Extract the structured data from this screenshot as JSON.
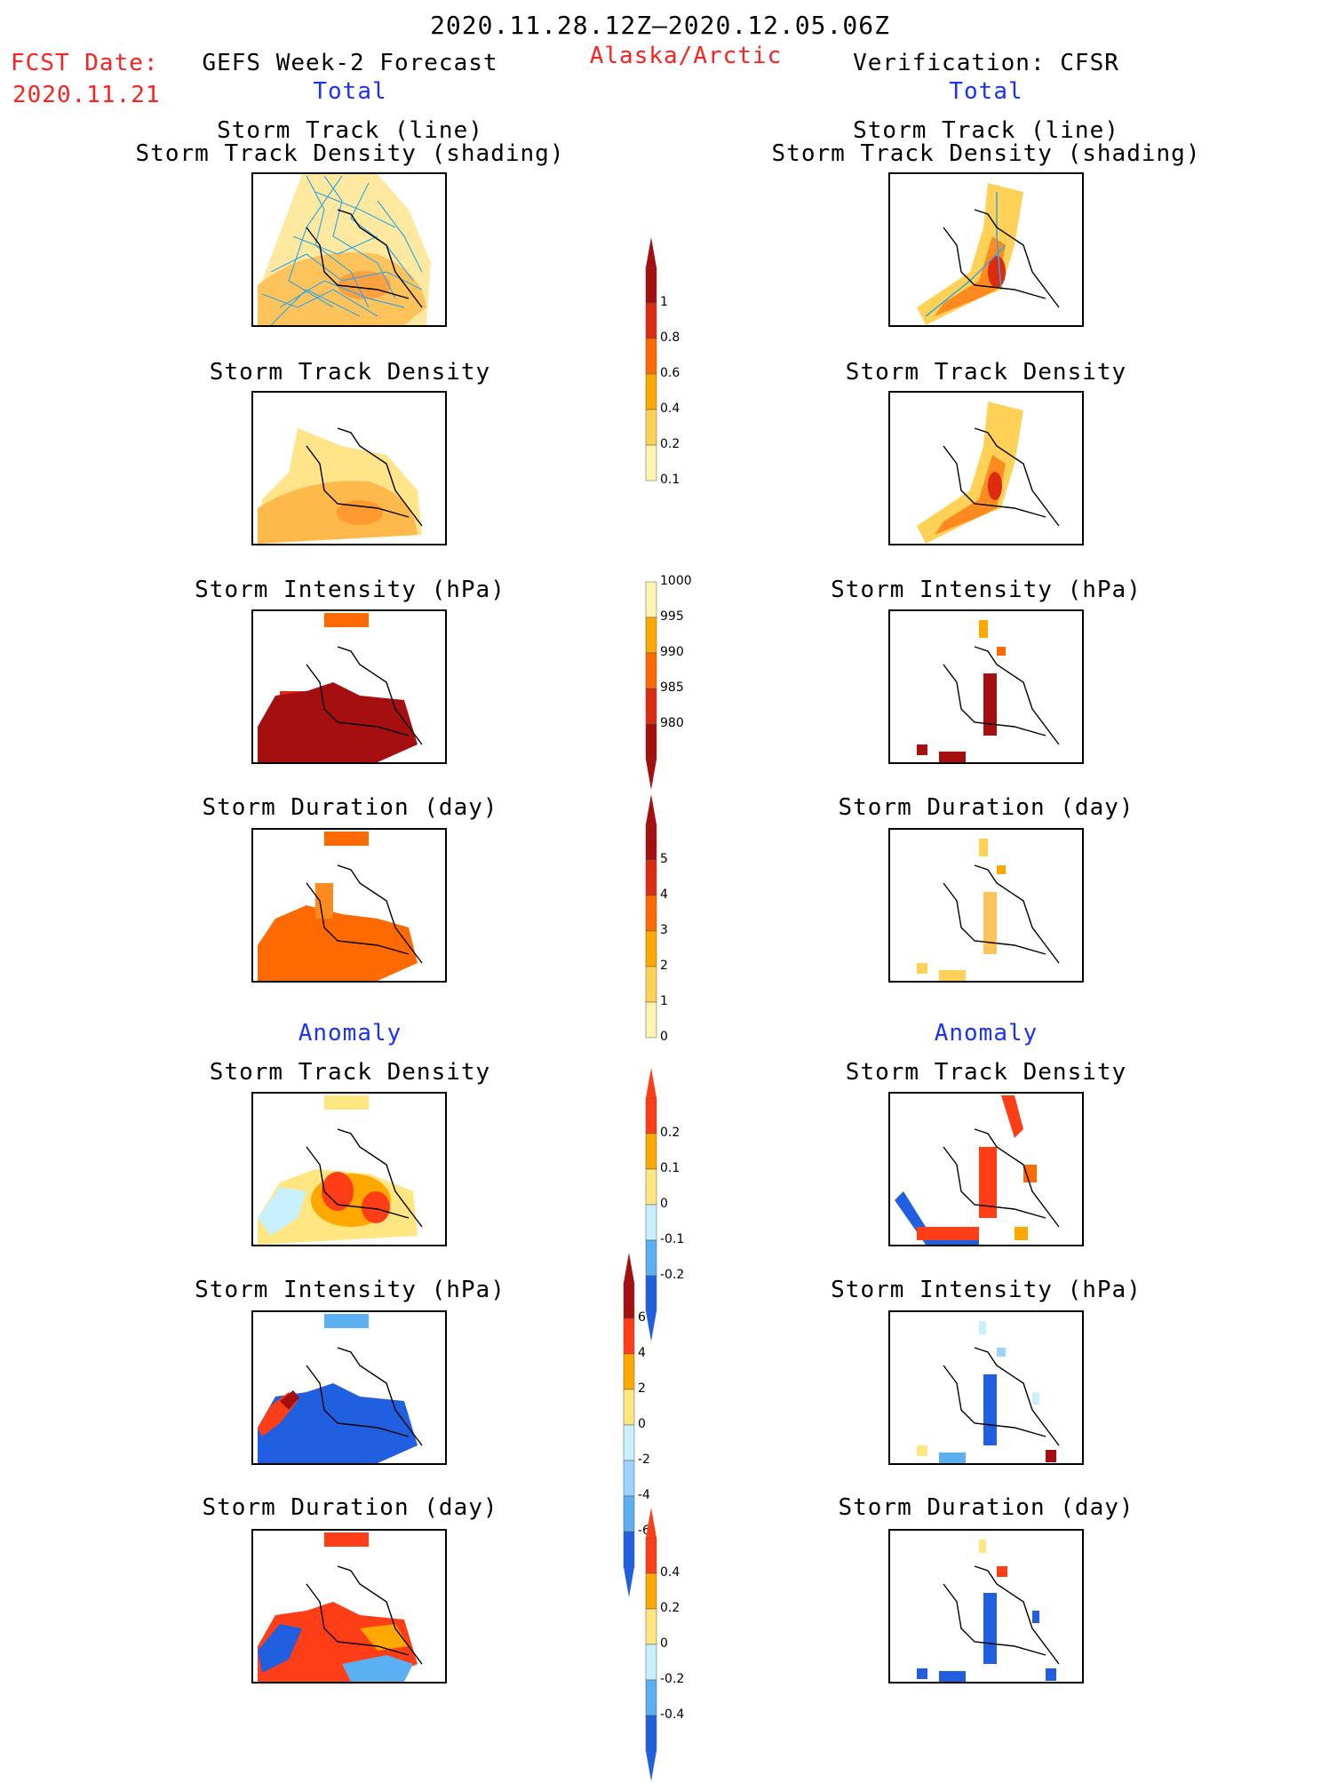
{
  "header": {
    "date_range": "2020.11.28.12Z–2020.12.05.06Z",
    "fcst_date_label": "FCST Date:",
    "fcst_date_value": "2020.11.21",
    "left_title": "GEFS Week-2 Forecast",
    "region": "Alaska/Arctic",
    "right_title": "Verification: CFSR",
    "left_section_total": "Total",
    "right_section_total": "Total",
    "left_section_anomaly": "Anomaly",
    "right_section_anomaly": "Anomaly"
  },
  "panel_titles": {
    "track_line": "Storm Track (line)",
    "track_density_shading": "Storm Track Density (shading)",
    "track_density": "Storm Track Density",
    "intensity": "Storm Intensity (hPa)",
    "duration": "Storm Duration (day)"
  },
  "colorbars": {
    "density": {
      "labels": [
        "1",
        "0.8",
        "0.6",
        "0.4",
        "0.2",
        "0.1"
      ],
      "colors": [
        "#a50f0f",
        "#dd2b12",
        "#ff6a00",
        "#ffa800",
        "#ffd257",
        "#fff4b0"
      ]
    },
    "intensity": {
      "labels": [
        "1000",
        "995",
        "990",
        "985",
        "980"
      ],
      "colors": [
        "#fff4b0",
        "#ffa800",
        "#ff6a00",
        "#dd2b12",
        "#a50f0f"
      ]
    },
    "duration": {
      "labels": [
        "5",
        "4",
        "3",
        "2",
        "1",
        "0"
      ],
      "colors": [
        "#a50f0f",
        "#dd2b12",
        "#ff6a00",
        "#ffa800",
        "#ffd257",
        "#fff4b0"
      ]
    },
    "anom_density": {
      "labels": [
        "0.2",
        "0.1",
        "0",
        "-0.1",
        "-0.2"
      ],
      "colors": [
        "#ff3d17",
        "#ffa800",
        "#ffe680",
        "#c8f0ff",
        "#5ab0f0",
        "#2060e0"
      ]
    },
    "anom_intensity": {
      "labels": [
        "6",
        "4",
        "2",
        "0",
        "-2",
        "-4",
        "-6"
      ],
      "colors": [
        "#a50f0f",
        "#ff3d17",
        "#ffa800",
        "#ffe680",
        "#c8f0ff",
        "#9ad4ff",
        "#5ab0f0",
        "#2060e0"
      ]
    },
    "anom_duration": {
      "labels": [
        "0.4",
        "0.2",
        "0",
        "-0.2",
        "-0.4"
      ],
      "colors": [
        "#ff3d17",
        "#ffa800",
        "#ffe680",
        "#c8f0ff",
        "#5ab0f0",
        "#2060e0"
      ]
    }
  }
}
